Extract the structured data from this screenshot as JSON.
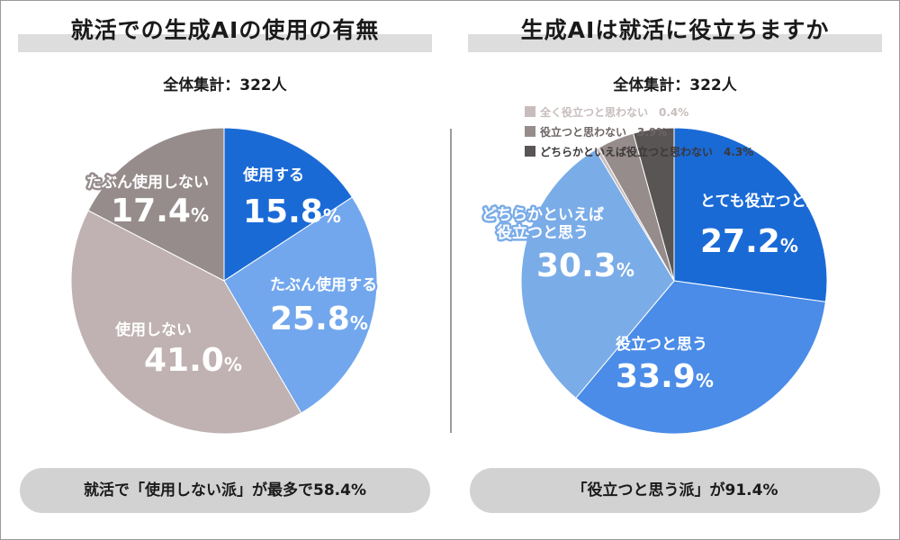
{
  "chart_data": [
    {
      "type": "pie",
      "title": "就活での生成AIの使用の有無",
      "subtitle": "全体集計：322人",
      "slices": [
        {
          "label": "使用する",
          "value": 15.8,
          "color": "#1a6ad6"
        },
        {
          "label": "たぶん使用する",
          "value": 25.8,
          "color": "#72a7ee"
        },
        {
          "label": "使用しない",
          "value": 41.0,
          "color": "#c0b2b2"
        },
        {
          "label": "たぶん使用しない",
          "value": 17.4,
          "color": "#968c8c"
        }
      ],
      "summary": "就活で「使用しない派」が最多で58.4%"
    },
    {
      "type": "pie",
      "title": "生成AIは就活に役立ちますか",
      "subtitle": "全体集計：322人",
      "slices": [
        {
          "label": "とても役立つと思う",
          "value": 27.2,
          "color": "#1a6ad6"
        },
        {
          "label": "役立つと思う",
          "value": 33.9,
          "color": "#4a8ce8"
        },
        {
          "label": "どちらかといえば役立つと思う",
          "value": 30.3,
          "color": "#7aace8"
        },
        {
          "label": "全く役立つと思わない",
          "value": 0.4,
          "color": "#c8bcbc"
        },
        {
          "label": "役立つと思わない",
          "value": 3.9,
          "color": "#968c8c"
        },
        {
          "label": "どちらかといえば役立つと思わない",
          "value": 4.3,
          "color": "#5a5555"
        }
      ],
      "summary": "「役立つと思う派」が91.4%"
    }
  ],
  "legend": [
    {
      "label": "全く役立つと思わない",
      "value": "0.4%",
      "color": "#c8bcbc",
      "text_color": "#c8bcbc"
    },
    {
      "label": "役立つと思わない",
      "value": "3.9%",
      "color": "#968c8c",
      "text_color": "#6e6464"
    },
    {
      "label": "どちらかといえば役立つと思わない",
      "value": "4.3%",
      "color": "#5a5555",
      "text_color": "#3c3838"
    }
  ],
  "pct_sign": "%"
}
